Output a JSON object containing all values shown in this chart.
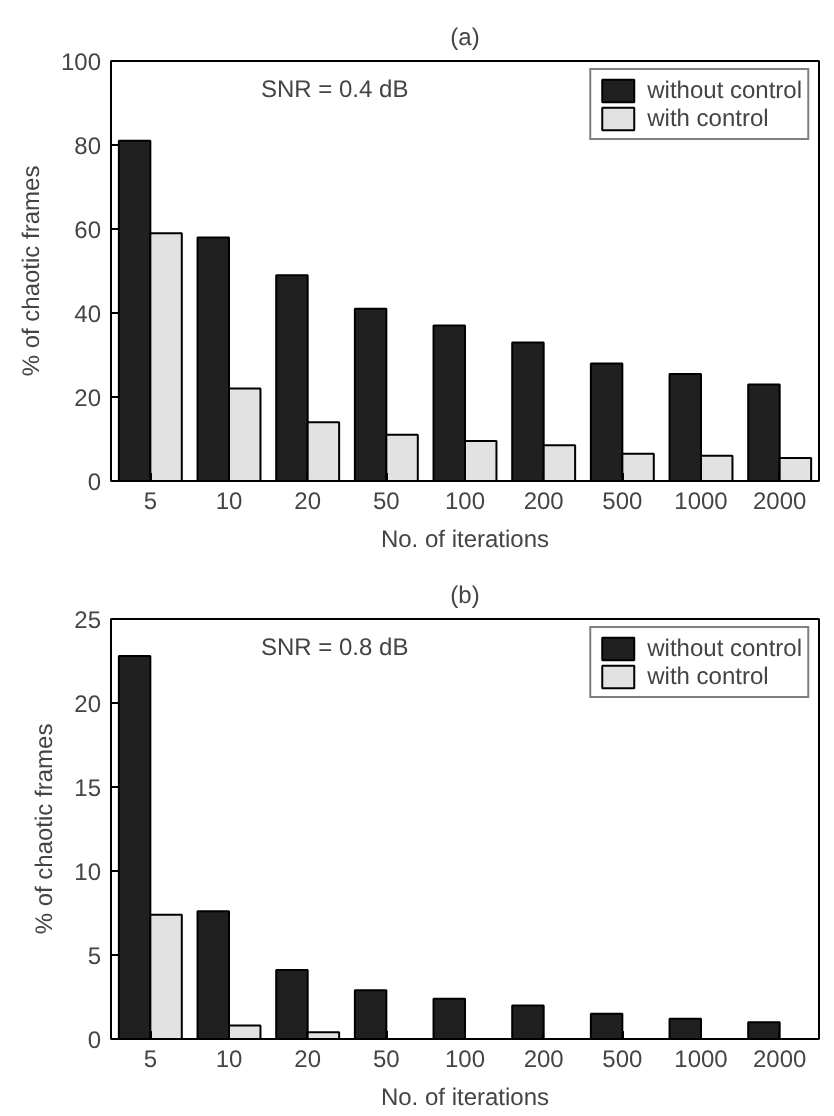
{
  "chart_data": [
    {
      "type": "bar",
      "title": "(a)",
      "xlabel": "No. of iterations",
      "ylabel": "% of chaotic frames",
      "categories": [
        "5",
        "10",
        "20",
        "50",
        "100",
        "200",
        "500",
        "1000",
        "2000"
      ],
      "series": [
        {
          "name": "without control",
          "color": "#202020",
          "values": [
            81,
            58,
            49,
            41,
            37,
            33,
            28,
            25.5,
            23
          ]
        },
        {
          "name": "with control",
          "color": "#e2e2e2",
          "values": [
            59,
            22,
            14,
            11,
            9.5,
            8.5,
            6.5,
            6,
            5.5
          ]
        }
      ],
      "ylim": [
        0,
        100
      ],
      "yticks": [
        0,
        20,
        40,
        60,
        80,
        100
      ],
      "grid": false,
      "legend": "top right",
      "annotations": [
        "SNR = 0.4 dB"
      ]
    },
    {
      "type": "bar",
      "title": "(b)",
      "xlabel": "No. of iterations",
      "ylabel": "% of chaotic frames",
      "categories": [
        "5",
        "10",
        "20",
        "50",
        "100",
        "200",
        "500",
        "1000",
        "2000"
      ],
      "series": [
        {
          "name": "without control",
          "color": "#202020",
          "values": [
            22.8,
            7.6,
            4.1,
            2.9,
            2.4,
            2.0,
            1.5,
            1.2,
            1.0
          ]
        },
        {
          "name": "with control",
          "color": "#e2e2e2",
          "values": [
            7.4,
            0.8,
            0.4,
            null,
            null,
            null,
            null,
            null,
            null
          ]
        }
      ],
      "ylim": [
        0,
        25
      ],
      "yticks": [
        0,
        5,
        10,
        15,
        20,
        25
      ],
      "grid": false,
      "legend": "top right",
      "annotations": [
        "SNR = 0.8 dB"
      ]
    }
  ]
}
